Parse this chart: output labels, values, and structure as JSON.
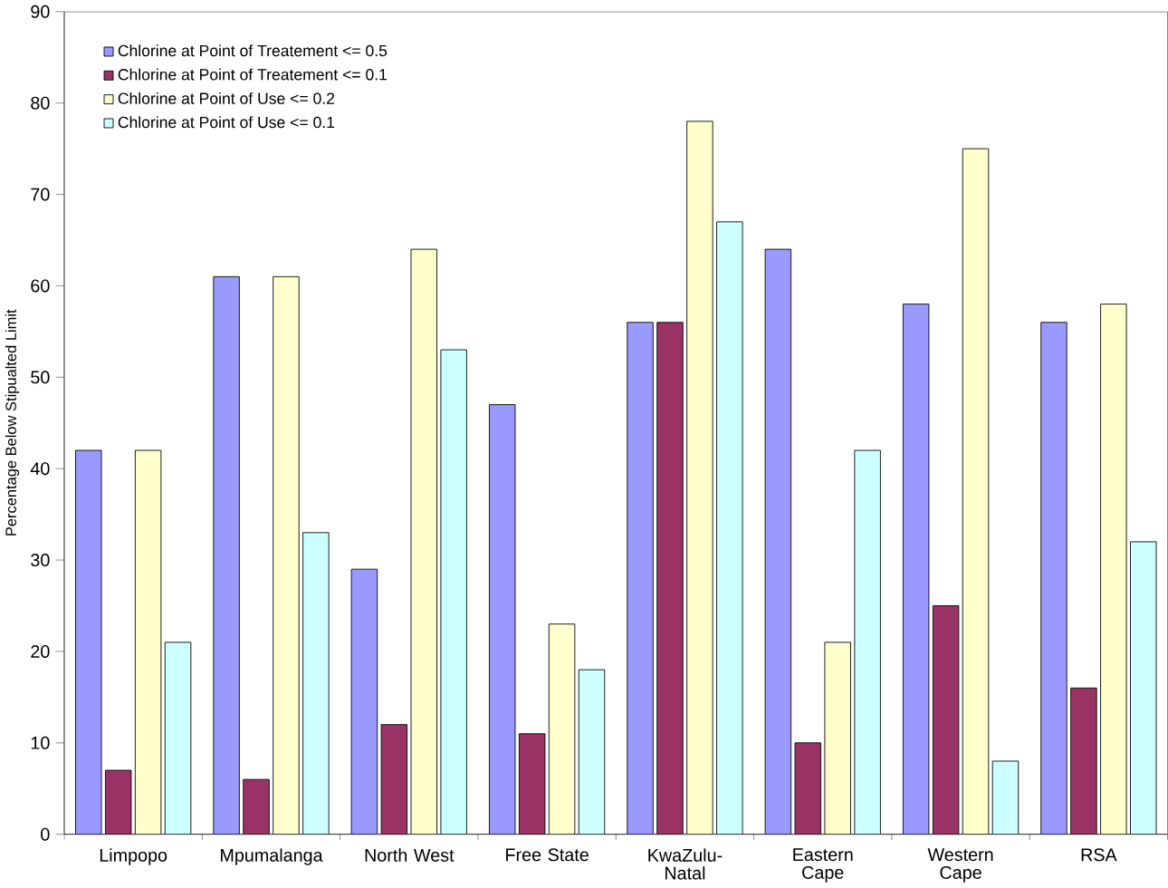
{
  "chart_data": {
    "type": "bar",
    "ylabel": "Percentage Below Stipualted Limit",
    "categories": [
      "Limpopo",
      "Mpumalanga",
      "North West",
      "Free State",
      "KwaZulu-Natal",
      "Eastern Cape",
      "Western Cape",
      "RSA"
    ],
    "series": [
      {
        "name": "Chlorine at Point of Treatement <= 0.5",
        "color": "#9999ff",
        "values": [
          42,
          61,
          29,
          47,
          56,
          64,
          58,
          56
        ]
      },
      {
        "name": "Chlorine at Point of Treatement <= 0.1",
        "color": "#993366",
        "values": [
          7,
          6,
          12,
          11,
          56,
          10,
          25,
          16
        ]
      },
      {
        "name": "Chlorine at Point of Use <= 0.2",
        "color": "#ffffcc",
        "values": [
          42,
          61,
          64,
          23,
          78,
          21,
          75,
          58
        ]
      },
      {
        "name": "Chlorine at Point of Use <= 0.1",
        "color": "#ccffff",
        "values": [
          21,
          33,
          53,
          18,
          67,
          42,
          8,
          32
        ]
      }
    ],
    "ylim": [
      0,
      90
    ],
    "yticks": [
      0,
      10,
      20,
      30,
      40,
      50,
      60,
      70,
      80,
      90
    ],
    "legend": "top left",
    "grid": false
  }
}
